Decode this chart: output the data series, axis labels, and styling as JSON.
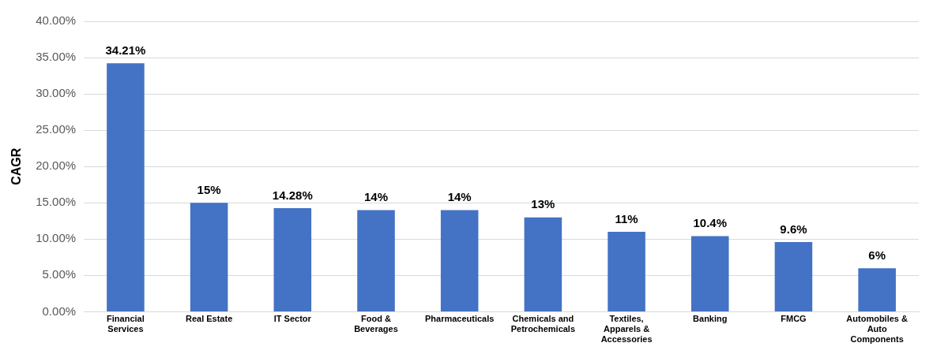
{
  "chart_data": {
    "type": "bar",
    "ylabel": "CAGR",
    "categories": [
      "Financial Services",
      "Real Estate",
      "IT Sector",
      "Food & Beverages",
      "Pharmaceuticals",
      "Chemicals and Petrochemicals",
      "Textiles, Apparels & Accessories",
      "Banking",
      "FMCG",
      "Automobiles & Auto Components"
    ],
    "values": [
      34.21,
      15,
      14.28,
      14,
      14,
      13,
      11,
      10.4,
      9.6,
      6
    ],
    "value_labels": [
      "34.21%",
      "15%",
      "14.28%",
      "14%",
      "14%",
      "13%",
      "11%",
      "10.4%",
      "9.6%",
      "6%"
    ],
    "color": "#4472c4",
    "ylim": [
      0,
      40
    ],
    "yticks": [
      {
        "value": 0,
        "label": "0.00%"
      },
      {
        "value": 5,
        "label": "5.00%"
      },
      {
        "value": 10,
        "label": "10.00%"
      },
      {
        "value": 15,
        "label": "15.00%"
      },
      {
        "value": 20,
        "label": "20.00%"
      },
      {
        "value": 25,
        "label": "25.00%"
      },
      {
        "value": 30,
        "label": "30.00%"
      },
      {
        "value": 35,
        "label": "35.00%"
      },
      {
        "value": 40,
        "label": "40.00%"
      }
    ],
    "grid": "y",
    "legend": false
  }
}
